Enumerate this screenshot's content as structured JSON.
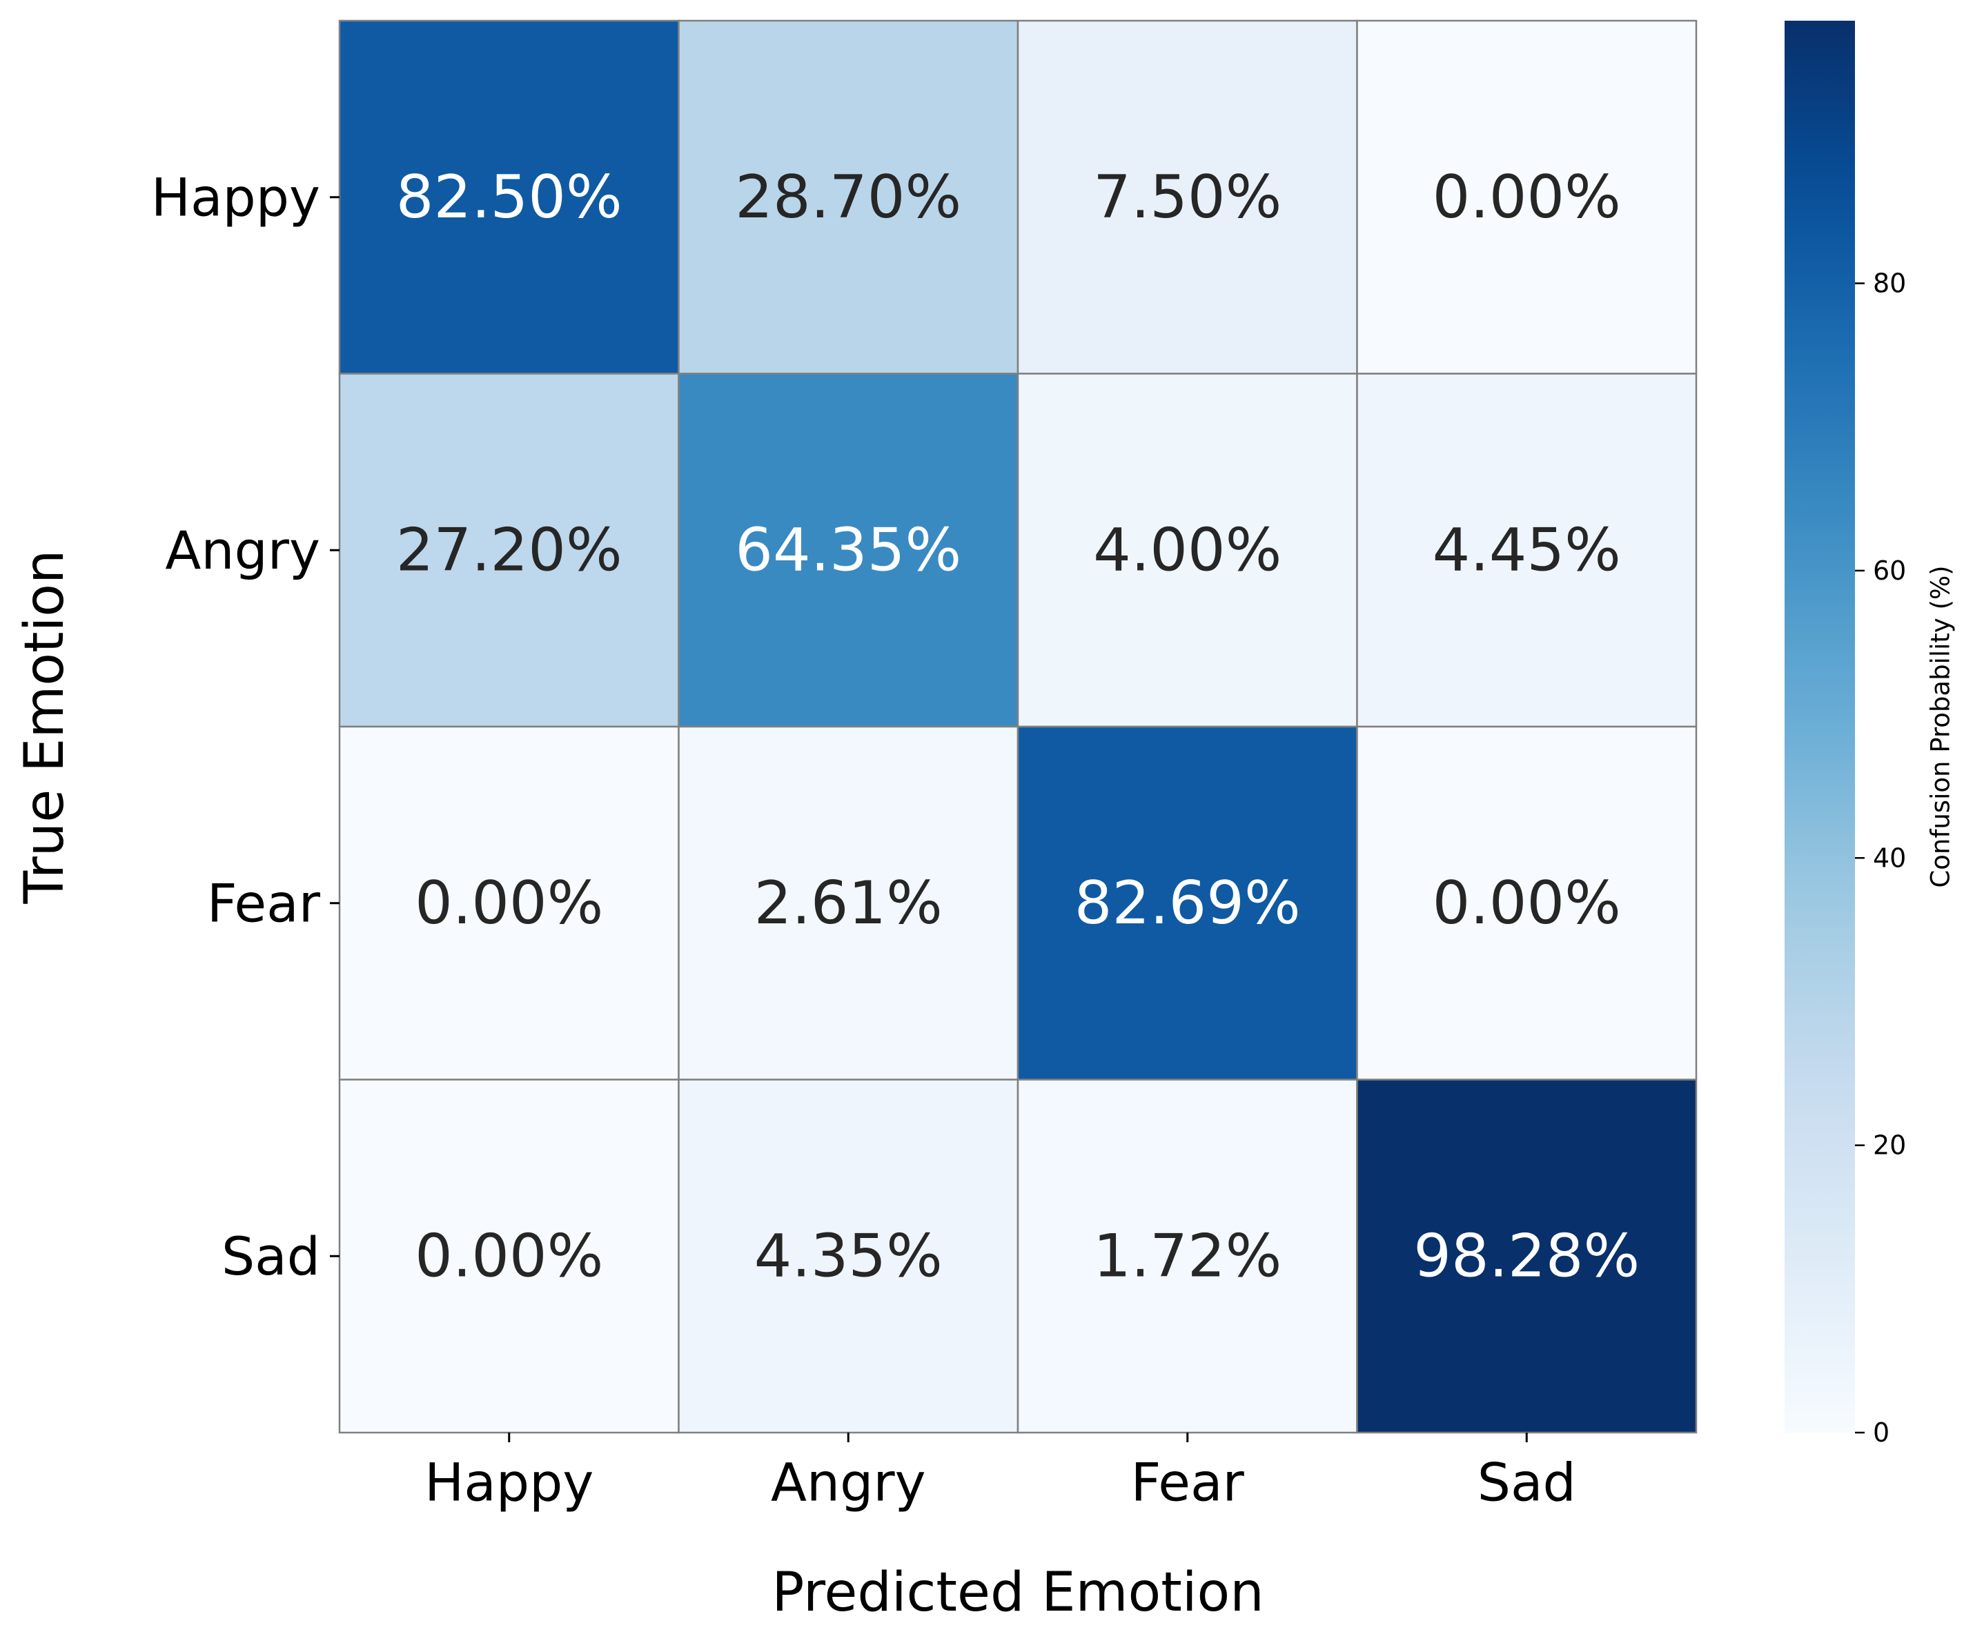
{
  "chart_data": {
    "type": "heatmap",
    "title": "",
    "xlabel": "Predicted Emotion",
    "ylabel": "True Emotion",
    "x_categories": [
      "Happy",
      "Angry",
      "Fear",
      "Sad"
    ],
    "y_categories": [
      "Happy",
      "Angry",
      "Fear",
      "Sad"
    ],
    "values": [
      [
        82.5,
        28.7,
        7.5,
        0.0
      ],
      [
        27.2,
        64.35,
        4.0,
        4.45
      ],
      [
        0.0,
        2.61,
        82.69,
        0.0
      ],
      [
        0.0,
        4.35,
        1.72,
        98.28
      ]
    ],
    "cell_labels": [
      [
        "82.50%",
        "28.70%",
        "7.50%",
        "0.00%"
      ],
      [
        "27.20%",
        "64.35%",
        "4.00%",
        "4.45%"
      ],
      [
        "0.00%",
        "2.61%",
        "82.69%",
        "0.00%"
      ],
      [
        "0.00%",
        "4.35%",
        "1.72%",
        "98.28%"
      ]
    ],
    "colormap": "Blues",
    "colorbar": {
      "label": "Confusion Probability (%)",
      "range": [
        0,
        98.28
      ],
      "ticks": [
        0,
        20,
        40,
        60,
        80
      ],
      "tick_labels": [
        "0",
        "20",
        "40",
        "60",
        "80"
      ]
    },
    "grid": true,
    "legend": "colorbar-right"
  }
}
